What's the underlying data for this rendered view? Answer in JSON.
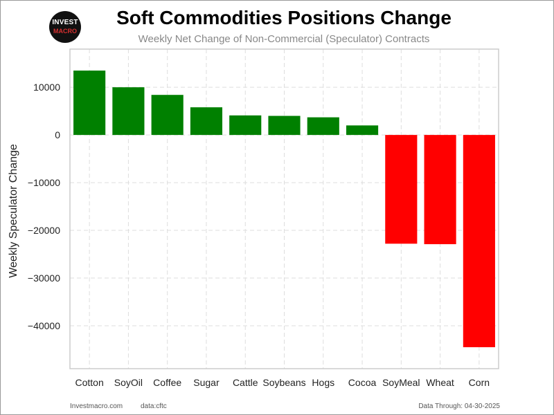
{
  "logo": {
    "line1": "INVEST",
    "line2": "MACRO"
  },
  "header": {
    "title": "Soft Commodities Positions Change",
    "subtitle": "Weekly Net Change of Non-Commercial (Speculator) Contracts"
  },
  "footer": {
    "site": "Investmacro.com",
    "source": "data:cftc",
    "through": "Data Through: 04-30-2025"
  },
  "colors": {
    "positive": "#008000",
    "negative": "#ff0000",
    "grid": "#dddddd",
    "frame": "#cccccc"
  },
  "chart_data": {
    "type": "bar",
    "title": "Soft Commodities Positions Change",
    "subtitle": "Weekly Net Change of Non-Commercial (Speculator) Contracts",
    "xlabel": "",
    "ylabel": "Weekly Speculator Change",
    "categories": [
      "Cotton",
      "SoyOil",
      "Coffee",
      "Sugar",
      "Cattle",
      "Soybeans",
      "Hogs",
      "Cocoa",
      "SoyMeal",
      "Wheat",
      "Corn"
    ],
    "values": [
      13500,
      10000,
      8400,
      5800,
      4100,
      4000,
      3700,
      2000,
      -22800,
      -22900,
      -44500
    ],
    "ylim": [
      -49000,
      18000
    ],
    "yticks": [
      10000,
      0,
      -10000,
      -20000,
      -30000,
      -40000
    ],
    "grid": true,
    "legend": "none"
  }
}
